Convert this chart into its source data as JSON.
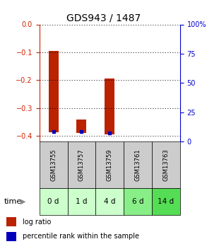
{
  "title": "GDS943 / 1487",
  "samples": [
    "GSM13755",
    "GSM13757",
    "GSM13759",
    "GSM13761",
    "GSM13763"
  ],
  "time_labels": [
    "0 d",
    "1 d",
    "4 d",
    "6 d",
    "14 d"
  ],
  "log_ratio_bottoms": [
    -0.388,
    -0.39,
    -0.395,
    0,
    0
  ],
  "log_ratio_tops": [
    -0.095,
    -0.34,
    -0.195,
    0,
    0
  ],
  "percentile_ranks": [
    18,
    2,
    10,
    0,
    0
  ],
  "bar_color": "#bb2200",
  "dot_color": "#0000bb",
  "ylim_left": [
    -0.42,
    0.0
  ],
  "ylim_right": [
    0,
    100
  ],
  "yticks_left": [
    0.0,
    -0.1,
    -0.2,
    -0.3,
    -0.4
  ],
  "yticks_right": [
    0,
    25,
    50,
    75,
    100
  ],
  "sample_bg_color": "#cccccc",
  "time_bg_colors": [
    "#ccffcc",
    "#ccffcc",
    "#ccffcc",
    "#88ee88",
    "#55dd55"
  ],
  "left_tick_color": "#cc2200",
  "right_tick_color": "#0000cc",
  "bar_width": 0.35,
  "title_fontsize": 10
}
